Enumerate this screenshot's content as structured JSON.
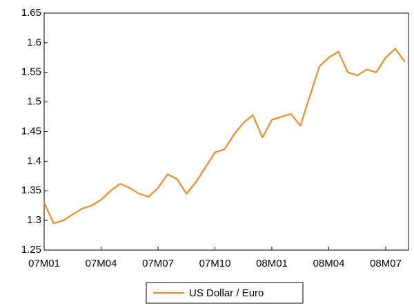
{
  "chart_data": {
    "type": "line",
    "categories": [
      "07M01",
      null,
      null,
      null,
      null,
      null,
      "07M04",
      null,
      null,
      null,
      null,
      null,
      "07M07",
      null,
      null,
      null,
      null,
      null,
      "07M10",
      null,
      null,
      null,
      null,
      null,
      "08M01",
      null,
      null,
      null,
      null,
      null,
      "08M04",
      null,
      null,
      null,
      null,
      null,
      "08M07",
      null,
      null
    ],
    "series": [
      {
        "name": "US Dollar / Euro",
        "color": "#f28c1e",
        "values": [
          1.33,
          1.295,
          1.3,
          1.31,
          1.32,
          1.325,
          1.335,
          1.35,
          1.362,
          1.355,
          1.345,
          1.34,
          1.355,
          1.378,
          1.37,
          1.345,
          1.365,
          1.39,
          1.415,
          1.42,
          1.445,
          1.465,
          1.478,
          1.44,
          1.47,
          1.475,
          1.48,
          1.46,
          1.51,
          1.56,
          1.575,
          1.585,
          1.55,
          1.545,
          1.555,
          1.55,
          1.575,
          1.59,
          1.568
        ]
      }
    ],
    "ylim": [
      1.25,
      1.65
    ],
    "yticks": [
      1.25,
      1.3,
      1.35,
      1.4,
      1.45,
      1.5,
      1.55,
      1.6,
      1.65
    ],
    "legend": "bottom"
  }
}
